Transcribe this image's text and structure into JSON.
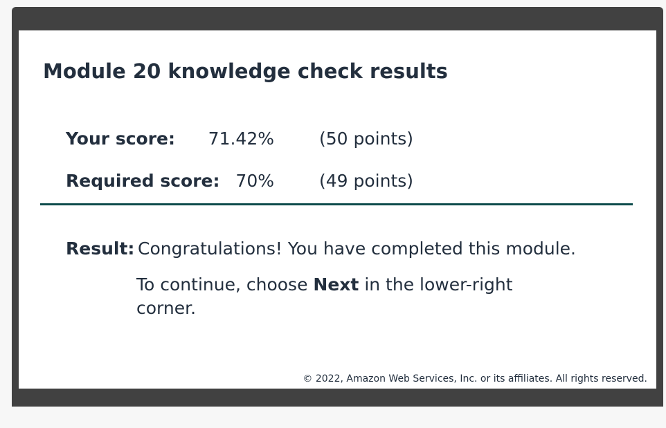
{
  "title": "Module 20 knowledge check results",
  "scores": {
    "yours": {
      "label": "Your score:",
      "percent": "71.42%",
      "points": "(50 points)"
    },
    "required": {
      "label": "Required score:",
      "percent": "70%",
      "points": "(49 points)"
    }
  },
  "result": {
    "label": "Result:",
    "message": "Congratulations! You have completed this module.",
    "next_prefix": "To continue, choose ",
    "next_keyword": "Next",
    "next_suffix": " in the lower-right corner."
  },
  "footer": {
    "copyright": "© 2022, Amazon Web Services, Inc. or its affiliates. All rights reserved."
  },
  "colors": {
    "frame": "#414141",
    "text": "#232f3e",
    "divider": "#0d4b4b"
  }
}
